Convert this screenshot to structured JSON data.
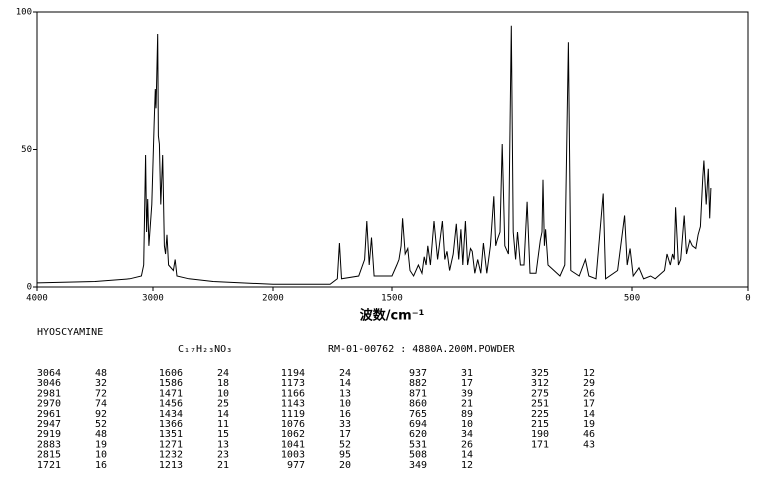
{
  "chart_data": {
    "type": "line",
    "x_label": "波数/cm⁻¹",
    "color": "#000000",
    "xlim": [
      4000,
      0
    ],
    "ylim": [
      0,
      100
    ],
    "xticks": [
      4000,
      3000,
      2000,
      1500,
      500,
      0
    ],
    "yticks": [
      0,
      50,
      100
    ],
    "x": [
      4000,
      3500,
      3200,
      3100,
      3080,
      3064,
      3055,
      3046,
      3035,
      3010,
      2990,
      2981,
      2975,
      2970,
      2961,
      2955,
      2947,
      2935,
      2919,
      2905,
      2895,
      2883,
      2870,
      2830,
      2815,
      2800,
      2700,
      2500,
      2000,
      1760,
      1730,
      1721,
      1712,
      1640,
      1615,
      1606,
      1596,
      1586,
      1575,
      1500,
      1480,
      1471,
      1462,
      1456,
      1445,
      1434,
      1425,
      1410,
      1390,
      1375,
      1366,
      1358,
      1351,
      1340,
      1325,
      1310,
      1290,
      1280,
      1271,
      1260,
      1245,
      1232,
      1222,
      1213,
      1205,
      1194,
      1185,
      1173,
      1166,
      1155,
      1143,
      1130,
      1119,
      1105,
      1090,
      1076,
      1068,
      1062,
      1050,
      1041,
      1030,
      1015,
      1003,
      995,
      985,
      977,
      965,
      950,
      937,
      925,
      900,
      882,
      875,
      871,
      865,
      860,
      850,
      800,
      780,
      765,
      755,
      720,
      694,
      680,
      650,
      620,
      610,
      560,
      531,
      520,
      508,
      495,
      470,
      450,
      420,
      400,
      360,
      349,
      335,
      325,
      318,
      312,
      300,
      290,
      275,
      265,
      251,
      240,
      225,
      215,
      205,
      195,
      190,
      180,
      171,
      165,
      160
    ],
    "values": [
      1.5,
      2,
      3,
      4,
      8,
      48,
      20,
      32,
      15,
      30,
      60,
      72,
      65,
      74,
      92,
      55,
      52,
      30,
      48,
      15,
      12,
      19,
      8,
      6,
      10,
      4,
      3,
      2,
      1,
      1,
      3,
      16,
      3,
      4,
      10,
      24,
      8,
      18,
      4,
      4,
      8,
      10,
      15,
      25,
      12,
      14,
      6,
      4,
      8,
      5,
      11,
      8,
      15,
      8,
      24,
      10,
      24,
      10,
      13,
      6,
      12,
      23,
      10,
      21,
      8,
      24,
      8,
      14,
      13,
      5,
      10,
      5,
      16,
      5,
      15,
      33,
      15,
      17,
      20,
      52,
      15,
      12,
      95,
      20,
      10,
      20,
      8,
      8,
      31,
      5,
      5,
      17,
      20,
      39,
      15,
      21,
      8,
      4,
      8,
      89,
      6,
      4,
      10,
      4,
      3,
      34,
      3,
      6,
      26,
      8,
      14,
      4,
      7,
      3,
      4,
      3,
      6,
      12,
      8,
      12,
      10,
      29,
      8,
      10,
      26,
      12,
      17,
      15,
      14,
      19,
      22,
      40,
      46,
      30,
      43,
      25,
      36
    ]
  },
  "table": {
    "title": "HYOSCYAMINE",
    "formula": "C₁₇H₂₃NO₃",
    "reference": "RM-01-00762 : 4880A.200M.POWDER",
    "peaks": [
      [
        3064,
        48
      ],
      [
        3046,
        32
      ],
      [
        2981,
        72
      ],
      [
        2970,
        74
      ],
      [
        2961,
        92
      ],
      [
        2947,
        52
      ],
      [
        2919,
        48
      ],
      [
        2883,
        19
      ],
      [
        2815,
        10
      ],
      [
        1721,
        16
      ],
      [
        1606,
        24
      ],
      [
        1586,
        18
      ],
      [
        1471,
        10
      ],
      [
        1456,
        25
      ],
      [
        1434,
        14
      ],
      [
        1366,
        11
      ],
      [
        1351,
        15
      ],
      [
        1271,
        13
      ],
      [
        1232,
        23
      ],
      [
        1213,
        21
      ],
      [
        1194,
        24
      ],
      [
        1173,
        14
      ],
      [
        1166,
        13
      ],
      [
        1143,
        10
      ],
      [
        1119,
        16
      ],
      [
        1076,
        33
      ],
      [
        1062,
        17
      ],
      [
        1041,
        52
      ],
      [
        1003,
        95
      ],
      [
        977,
        20
      ],
      [
        937,
        31
      ],
      [
        882,
        17
      ],
      [
        871,
        39
      ],
      [
        860,
        21
      ],
      [
        765,
        89
      ],
      [
        694,
        10
      ],
      [
        620,
        34
      ],
      [
        531,
        26
      ],
      [
        508,
        14
      ],
      [
        349,
        12
      ],
      [
        325,
        12
      ],
      [
        312,
        29
      ],
      [
        275,
        26
      ],
      [
        251,
        17
      ],
      [
        225,
        14
      ],
      [
        215,
        19
      ],
      [
        190,
        46
      ],
      [
        171,
        43
      ]
    ]
  }
}
